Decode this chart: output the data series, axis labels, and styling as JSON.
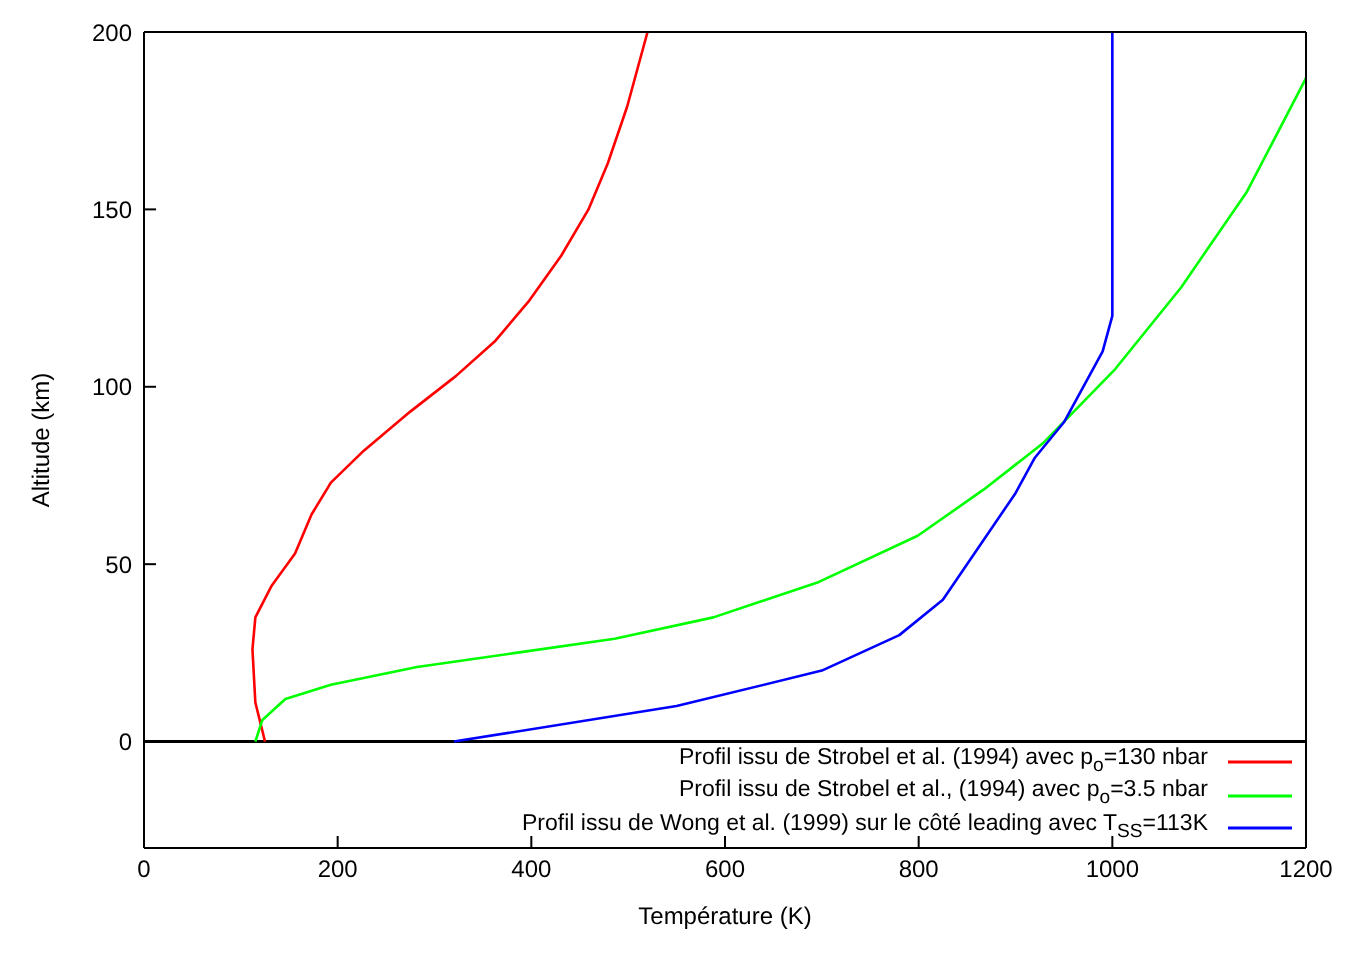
{
  "chart_data": {
    "type": "line",
    "xlabel": "Température (K)",
    "ylabel": "Altitude (km)",
    "xlim": [
      0,
      1200
    ],
    "xticks": [
      0,
      200,
      400,
      600,
      800,
      1000,
      1200
    ],
    "ylim": [
      -30,
      200
    ],
    "yticks": [
      0,
      50,
      100,
      150,
      200
    ],
    "grid": false,
    "legend": "bottom right",
    "marker": "none",
    "line_style": "solid",
    "ref_lines": [
      {
        "axis": "y",
        "value": 0,
        "color": "#000000"
      }
    ],
    "series": [
      {
        "name": "Profil issu de Strobel et al. (1994) avec p$_{o}$=130 nbar",
        "color": "#ff0000",
        "x": [
          125,
          115,
          112,
          115,
          132,
          156,
          173,
          193,
          227,
          275,
          322,
          363,
          397,
          431,
          459,
          479,
          499,
          520
        ],
        "values": [
          0,
          11,
          26,
          35,
          44,
          53,
          64,
          73,
          82,
          93,
          103,
          113,
          124,
          137,
          150,
          163,
          179,
          200
        ]
      },
      {
        "name": "Profil issu de Strobel et al., (1994) avec p$_{o}$=3.5 nbar",
        "color": "#00ff00",
        "x": [
          115,
          122,
          146,
          193,
          282,
          384,
          486,
          588,
          697,
          799,
          867,
          928,
          1003,
          1071,
          1139,
          1200
        ],
        "values": [
          0,
          6,
          12,
          16,
          21,
          25,
          29,
          35,
          45,
          58,
          71,
          84,
          105,
          128,
          155,
          187
        ]
      },
      {
        "name": "Profil issu de Wong et al. (1999) sur le côté leading avec T$_{SS}$=113K",
        "color": "#0000ff",
        "x": [
          320,
          550,
          700,
          780,
          825,
          900,
          920,
          950,
          990,
          1000,
          1000
        ],
        "values": [
          0,
          10,
          20,
          30,
          40,
          70,
          80,
          90,
          110,
          120,
          200
        ]
      }
    ]
  }
}
